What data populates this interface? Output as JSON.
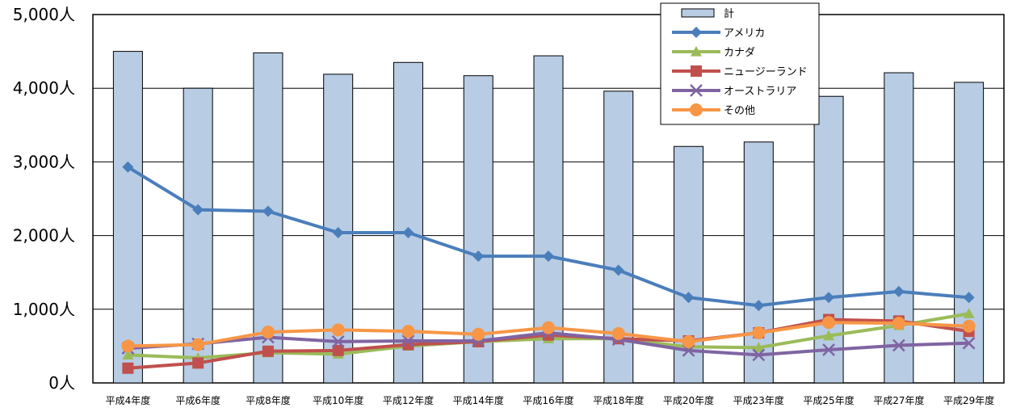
{
  "chart_data": {
    "type": "bar",
    "ylim": [
      0,
      5000
    ],
    "y_ticks": [
      "0人",
      "1,000人",
      "2,000人",
      "3,000人",
      "4,000人",
      "5,000人"
    ],
    "y_tick_values": [
      0,
      1000,
      2000,
      3000,
      4000,
      5000
    ],
    "grid": true,
    "legend_position": "top-right",
    "categories": [
      "平成4年度",
      "平成6年度",
      "平成8年度",
      "平成10年度",
      "平成12年度",
      "平成14年度",
      "平成16年度",
      "平成18年度",
      "平成20年度",
      "平成23年度",
      "平成25年度",
      "平成27年度",
      "平成29年度"
    ],
    "series": [
      {
        "name": "計",
        "kind": "bar",
        "color": "#b8cce4",
        "values": [
          4500,
          4000,
          4480,
          4190,
          4350,
          4170,
          4440,
          3960,
          3210,
          3270,
          3890,
          4210,
          4080
        ]
      },
      {
        "name": "アメリカ",
        "kind": "line",
        "marker": "diamond",
        "color": "#4a7ebb",
        "values": [
          2930,
          2350,
          2330,
          2040,
          2040,
          1720,
          1720,
          1530,
          1160,
          1050,
          1160,
          1240,
          1160
        ]
      },
      {
        "name": "カナダ",
        "kind": "line",
        "marker": "triangle",
        "color": "#9bbb59",
        "values": [
          380,
          340,
          410,
          390,
          500,
          560,
          600,
          600,
          490,
          480,
          640,
          780,
          940
        ]
      },
      {
        "name": "ニュージーランド",
        "kind": "line",
        "marker": "square",
        "color": "#c0504d",
        "values": [
          200,
          270,
          430,
          440,
          520,
          560,
          650,
          600,
          570,
          680,
          860,
          840,
          700
        ]
      },
      {
        "name": "オーストラリア",
        "kind": "line",
        "marker": "x",
        "color": "#8064a2",
        "values": [
          470,
          530,
          620,
          560,
          570,
          570,
          680,
          590,
          440,
          380,
          450,
          510,
          540
        ]
      },
      {
        "name": "その他",
        "kind": "line",
        "marker": "circle",
        "color": "#f79646",
        "values": [
          500,
          520,
          690,
          720,
          700,
          660,
          750,
          670,
          560,
          680,
          820,
          810,
          770
        ]
      }
    ]
  }
}
